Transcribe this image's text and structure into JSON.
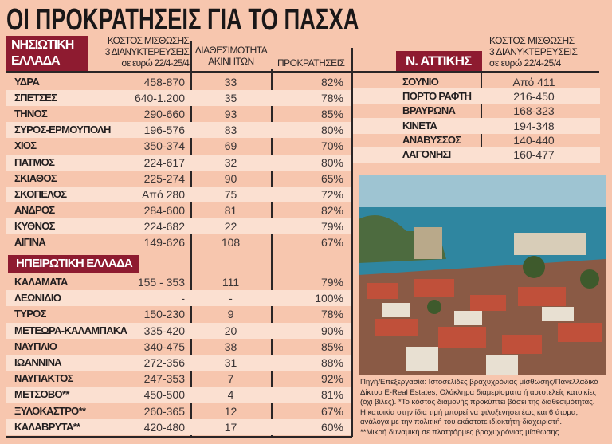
{
  "title": "ΟΙ ΠΡΟΚΡΑΤΗΣΕΙΣ ΓΙΑ ΤΟ ΠΑΣΧΑ",
  "colors": {
    "background": "#f7c6ae",
    "stripe": "#fbe0d1",
    "category_box": "#8e1b30"
  },
  "headers": {
    "cost": [
      "ΚΟΣΤΟΣ ΜΙΣΘΩΣΗΣ",
      "3 ΔΙΑΝΥΚΤΕΡΕΥΣΕΙΣ",
      "σε ευρώ 22/4-25/4"
    ],
    "availability": [
      "ΔΙΑΘΕΣΙΜΟΤΗΤΑ",
      "ΑΚΙΝΗΤΩΝ"
    ],
    "bookings": "ΠΡΟΚΡΑΤΗΣΕΙΣ"
  },
  "islands": {
    "label": [
      "ΝΗΣΙΩΤΙΚΗ",
      "ΕΛΛΑΔΑ"
    ],
    "rows": [
      {
        "name": "ΥΔΡΑ",
        "cost": "458-870",
        "avail": "33",
        "book": "82%"
      },
      {
        "name": "ΣΠΕΤΣΕΣ",
        "cost": "640-1.200",
        "avail": "35",
        "book": "78%"
      },
      {
        "name": "ΤΗΝΟΣ",
        "cost": "290-660",
        "avail": "93",
        "book": "85%"
      },
      {
        "name": "ΣΥΡΟΣ-ΕΡΜΟΥΠΟΛΗ",
        "cost": "196-576",
        "avail": "83",
        "book": "80%"
      },
      {
        "name": "ΧΙΟΣ",
        "cost": "350-374",
        "avail": "69",
        "book": "70%"
      },
      {
        "name": "ΠΑΤΜΟΣ",
        "cost": "224-617",
        "avail": "32",
        "book": "80%"
      },
      {
        "name": "ΣΚΙΑΘΟΣ",
        "cost": "225-274",
        "avail": "90",
        "book": "65%"
      },
      {
        "name": "ΣΚΟΠΕΛΟΣ",
        "cost": "Από 280",
        "avail": "75",
        "book": "72%"
      },
      {
        "name": "ΑΝΔΡΟΣ",
        "cost": "284-600",
        "avail": "81",
        "book": "82%"
      },
      {
        "name": "ΚΥΘΝΟΣ",
        "cost": "224-682",
        "avail": "22",
        "book": "79%"
      },
      {
        "name": "ΑΙΓΙΝΑ",
        "cost": "149-626",
        "avail": "108",
        "book": "67%"
      }
    ]
  },
  "mainland": {
    "label": "ΗΠΕΙΡΩΤΙΚΗ ΕΛΛΑΔΑ",
    "rows": [
      {
        "name": "ΚΑΛΑΜΑΤΑ",
        "cost": "155 - 353",
        "avail": "111",
        "book": "79%"
      },
      {
        "name": "ΛΕΩΝΙΔΙΟ",
        "cost": "-",
        "avail": "-",
        "book": "100%"
      },
      {
        "name": "ΤΥΡΟΣ",
        "cost": "150-230",
        "avail": "9",
        "book": "78%"
      },
      {
        "name": "ΜΕΤΕΩΡΑ-ΚΑΛΑΜΠΑΚΑ",
        "cost": "335-420",
        "avail": "20",
        "book": "90%"
      },
      {
        "name": "ΝΑΥΠΛΙΟ",
        "cost": "340-475",
        "avail": "38",
        "book": "85%"
      },
      {
        "name": "ΙΩΑΝΝΙΝΑ",
        "cost": "272-356",
        "avail": "31",
        "book": "88%"
      },
      {
        "name": "ΝΑΥΠΑΚΤΟΣ",
        "cost": "247-353",
        "avail": "7",
        "book": "92%"
      },
      {
        "name": "ΜΕΤΣΟΒΟ**",
        "cost": "450-500",
        "avail": "4",
        "book": "81%"
      },
      {
        "name": "ΞΥΛΟΚΑΣΤΡΟ**",
        "cost": "260-365",
        "avail": "12",
        "book": "67%"
      },
      {
        "name": "ΚΑΛΑΒΡΥΤΑ**",
        "cost": "420-480",
        "avail": "17",
        "book": "60%"
      }
    ]
  },
  "attica": {
    "label": "Ν. ΑΤΤΙΚΗΣ",
    "rows": [
      {
        "name": "ΣΟΥΝΙΟ",
        "cost": "Από 411"
      },
      {
        "name": "ΠΟΡΤΟ ΡΑΦΤΗ",
        "cost": "216-450"
      },
      {
        "name": "ΒΡΑΥΡΩΝΑ",
        "cost": "168-323"
      },
      {
        "name": "ΚΙΝΕΤΑ",
        "cost": "194-348"
      },
      {
        "name": "ΑΝΑΒΥΣΣΟΣ",
        "cost": "140-440"
      },
      {
        "name": "ΛΑΓΟΝΗΣΙ",
        "cost": "160-477"
      }
    ]
  },
  "caption": [
    "Πηγή/Επεξεργασία: Ιστοσελίδες βραχυχρόνιας μίσθωσης/Πανελλαδικό Δίκτυο E-Real Estates, Ολόκληρα διαμερίσματα ή αυτοτελείς κατοικίες (όχι βίλες). *Το κόστος διαμονής προκύπτει βάσει της διαθεσιμότητας.",
    "Η κατοικία στην ίδια τιμή μπορεί να φιλοξενήσει έως και 6 άτομα, ανάλογα με την πολιτική του εκάστοτε ιδιοκτήτη-διαχειριστή.",
    "**Μικρή δυναμική σε πλατφόρμες βραχυχρόνιας μίσθωσης."
  ]
}
